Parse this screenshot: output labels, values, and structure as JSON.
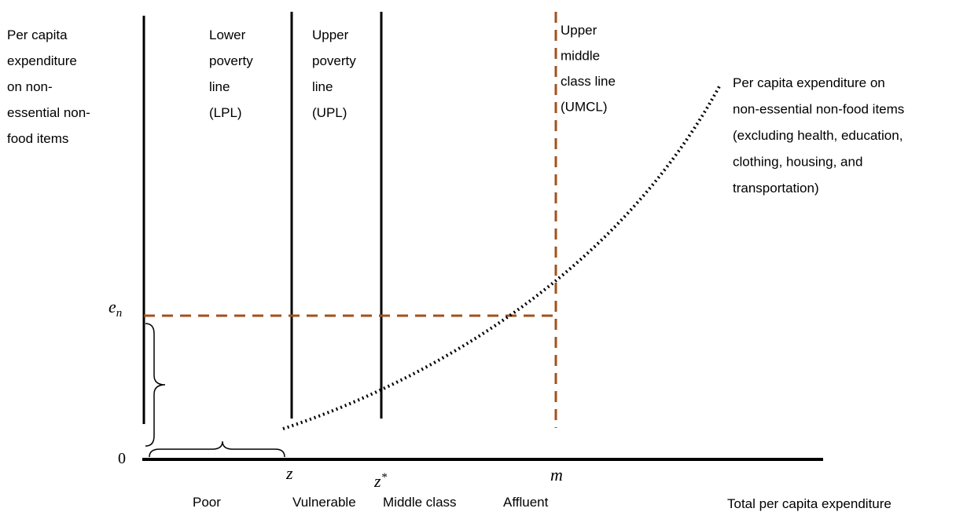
{
  "y_axis_label": [
    "Per capita",
    "expenditure",
    "on non-",
    "essential non-",
    "food items"
  ],
  "lines": {
    "lpl": [
      "Lower",
      "poverty",
      "line",
      "(LPL)"
    ],
    "upl": [
      "Upper",
      "poverty",
      "line",
      "(UPL)"
    ],
    "umcl": [
      "Upper",
      "middle",
      "class line",
      "(UMCL)"
    ]
  },
  "curve_label": [
    "Per capita expenditure on",
    "non-essential non-food items",
    "(excluding health, education,",
    "clothing, housing, and",
    "transportation)"
  ],
  "y_markers": {
    "en": {
      "base": "e",
      "sub": "n"
    },
    "origin": "0"
  },
  "x_markers": {
    "z": "z",
    "z_star": {
      "base": "z",
      "sup": "*"
    },
    "m": "m"
  },
  "categories": [
    "Poor",
    "Vulnerable",
    "Middle class",
    "Affluent"
  ],
  "x_axis_label": "Total per capita expenditure"
}
